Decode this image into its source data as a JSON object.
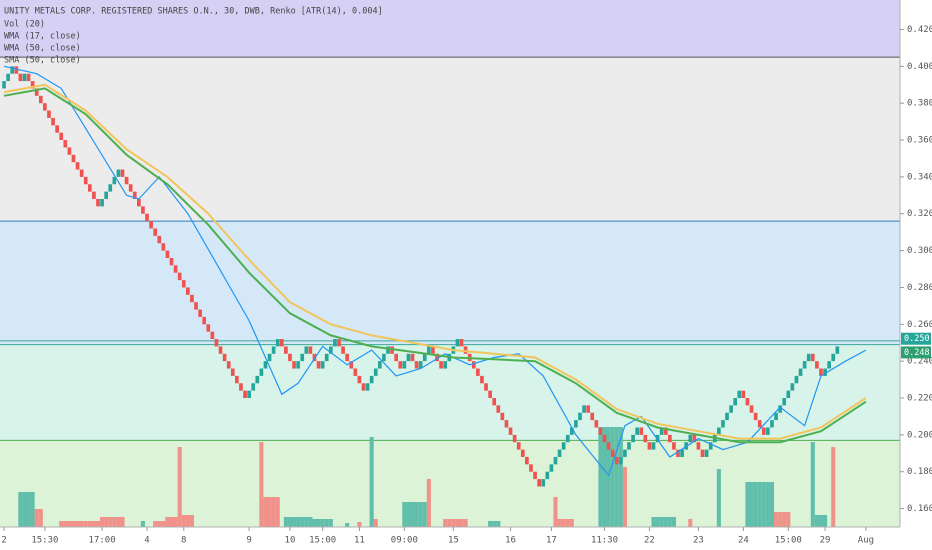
{
  "chart_data": {
    "type": "renko",
    "title": "UNITY METALS CORP. REGISTERED SHARES O.N., 30, DWB, Renko [ATR(14), 0.004]",
    "brick_size": 0.004,
    "up_color": "#26a69a",
    "down_color": "#ef5350",
    "closes": [
      0.392,
      0.396,
      0.4,
      0.396,
      0.392,
      0.396,
      0.392,
      0.388,
      0.384,
      0.38,
      0.376,
      0.372,
      0.368,
      0.364,
      0.36,
      0.356,
      0.352,
      0.348,
      0.344,
      0.34,
      0.336,
      0.332,
      0.328,
      0.324,
      0.328,
      0.332,
      0.336,
      0.34,
      0.344,
      0.34,
      0.336,
      0.332,
      0.328,
      0.324,
      0.32,
      0.316,
      0.312,
      0.308,
      0.304,
      0.3,
      0.296,
      0.292,
      0.288,
      0.284,
      0.28,
      0.276,
      0.272,
      0.268,
      0.264,
      0.26,
      0.256,
      0.252,
      0.248,
      0.244,
      0.24,
      0.236,
      0.232,
      0.228,
      0.224,
      0.22,
      0.224,
      0.228,
      0.232,
      0.236,
      0.24,
      0.244,
      0.248,
      0.252,
      0.248,
      0.244,
      0.24,
      0.236,
      0.24,
      0.244,
      0.248,
      0.244,
      0.24,
      0.236,
      0.24,
      0.244,
      0.248,
      0.252,
      0.248,
      0.244,
      0.24,
      0.236,
      0.232,
      0.228,
      0.224,
      0.228,
      0.232,
      0.236,
      0.24,
      0.244,
      0.248,
      0.244,
      0.24,
      0.236,
      0.24,
      0.244,
      0.24,
      0.236,
      0.24,
      0.244,
      0.248,
      0.244,
      0.24,
      0.236,
      0.24,
      0.244,
      0.248,
      0.252,
      0.248,
      0.244,
      0.24,
      0.236,
      0.232,
      0.228,
      0.224,
      0.22,
      0.216,
      0.212,
      0.208,
      0.204,
      0.2,
      0.196,
      0.192,
      0.188,
      0.184,
      0.18,
      0.176,
      0.172,
      0.176,
      0.18,
      0.184,
      0.188,
      0.192,
      0.196,
      0.2,
      0.204,
      0.208,
      0.212,
      0.216,
      0.212,
      0.208,
      0.204,
      0.2,
      0.196,
      0.192,
      0.188,
      0.184,
      0.188,
      0.192,
      0.196,
      0.2,
      0.204,
      0.2,
      0.196,
      0.192,
      0.196,
      0.2,
      0.204,
      0.2,
      0.196,
      0.192,
      0.188,
      0.192,
      0.196,
      0.2,
      0.196,
      0.192,
      0.188,
      0.192,
      0.196,
      0.2,
      0.204,
      0.208,
      0.212,
      0.216,
      0.22,
      0.224,
      0.22,
      0.216,
      0.212,
      0.208,
      0.204,
      0.2,
      0.204,
      0.208,
      0.212,
      0.216,
      0.22,
      0.224,
      0.228,
      0.232,
      0.236,
      0.24,
      0.244,
      0.24,
      0.236,
      0.232,
      0.236,
      0.24,
      0.244,
      0.248
    ],
    "lines": [
      {
        "name": "WMA (17, close)",
        "color": "#2196f3",
        "x": [
          0,
          8,
          14,
          30,
          33,
          38,
          45,
          60,
          68,
          72,
          78,
          84,
          90,
          96,
          102,
          108,
          114,
          120,
          126,
          132,
          140,
          148,
          152,
          156,
          163,
          170,
          176,
          182,
          190,
          196,
          200,
          206,
          211
        ],
        "values": [
          0.4,
          0.396,
          0.388,
          0.33,
          0.328,
          0.34,
          0.32,
          0.262,
          0.222,
          0.228,
          0.248,
          0.238,
          0.246,
          0.232,
          0.236,
          0.244,
          0.238,
          0.242,
          0.244,
          0.232,
          0.2,
          0.178,
          0.205,
          0.21,
          0.188,
          0.198,
          0.192,
          0.196,
          0.215,
          0.205,
          0.232,
          0.24,
          0.246
        ]
      },
      {
        "name": "SMA (50, close)",
        "color": "#f2c55c",
        "x": [
          0,
          10,
          20,
          30,
          40,
          50,
          60,
          70,
          80,
          90,
          100,
          110,
          120,
          130,
          140,
          150,
          160,
          170,
          180,
          190,
          200,
          211
        ],
        "values": [
          0.386,
          0.39,
          0.376,
          0.355,
          0.34,
          0.32,
          0.295,
          0.272,
          0.26,
          0.254,
          0.25,
          0.246,
          0.244,
          0.242,
          0.23,
          0.214,
          0.206,
          0.202,
          0.198,
          0.198,
          0.204,
          0.22
        ]
      },
      {
        "name": "WMA (50, close)",
        "color": "#4caf50",
        "x": [
          0,
          10,
          20,
          30,
          40,
          50,
          60,
          70,
          80,
          90,
          100,
          110,
          120,
          130,
          140,
          150,
          160,
          170,
          180,
          190,
          200,
          211
        ],
        "values": [
          0.384,
          0.388,
          0.374,
          0.352,
          0.336,
          0.314,
          0.288,
          0.266,
          0.254,
          0.248,
          0.245,
          0.242,
          0.241,
          0.24,
          0.228,
          0.212,
          0.204,
          0.2,
          0.196,
          0.196,
          0.202,
          0.218
        ]
      }
    ],
    "volume_name": "Vol (20)",
    "vlim": [
      0,
      100
    ],
    "volume_up": {
      "color": "#5fbfab",
      "x": [
        4,
        5,
        6,
        7,
        34,
        69,
        70,
        71,
        72,
        73,
        74,
        75,
        76,
        77,
        78,
        79,
        80,
        84,
        90,
        98,
        99,
        100,
        101,
        102,
        103,
        119,
        120,
        121,
        146,
        147,
        148,
        149,
        150,
        151,
        159,
        160,
        161,
        162,
        163,
        164,
        175,
        182,
        183,
        184,
        185,
        186,
        187,
        188,
        198,
        199,
        200,
        201
      ],
      "values": [
        35,
        35,
        35,
        35,
        6,
        10,
        10,
        10,
        10,
        10,
        10,
        10,
        8,
        8,
        8,
        8,
        8,
        4,
        90,
        25,
        25,
        25,
        25,
        25,
        25,
        6,
        6,
        6,
        100,
        100,
        100,
        100,
        100,
        100,
        10,
        10,
        10,
        10,
        10,
        10,
        58,
        45,
        45,
        45,
        45,
        45,
        45,
        45,
        85,
        12,
        12,
        12
      ]
    },
    "volume_down": {
      "color": "#f0928a",
      "x": [
        8,
        9,
        14,
        15,
        16,
        17,
        18,
        19,
        20,
        21,
        22,
        23,
        24,
        25,
        26,
        27,
        28,
        29,
        37,
        38,
        39,
        40,
        41,
        42,
        43,
        44,
        45,
        46,
        63,
        64,
        65,
        66,
        67,
        87,
        91,
        104,
        108,
        109,
        110,
        111,
        112,
        113,
        135,
        136,
        137,
        138,
        139,
        152,
        168,
        189,
        190,
        191,
        192,
        203
      ],
      "values": [
        18,
        18,
        6,
        6,
        6,
        6,
        6,
        6,
        6,
        6,
        6,
        6,
        10,
        10,
        10,
        10,
        10,
        10,
        6,
        6,
        6,
        10,
        10,
        10,
        80,
        12,
        12,
        12,
        85,
        30,
        30,
        30,
        30,
        5,
        8,
        48,
        8,
        8,
        8,
        8,
        8,
        8,
        30,
        8,
        8,
        8,
        8,
        60,
        8,
        15,
        15,
        15,
        15,
        80
      ]
    },
    "bands": [
      {
        "from": 0.405,
        "to": 0.436,
        "color": "#d6d0f5"
      },
      {
        "from": 0.316,
        "to": 0.405,
        "color": "#ececec"
      },
      {
        "from": 0.249,
        "to": 0.316,
        "color": "#d4e8f7"
      },
      {
        "from": 0.197,
        "to": 0.249,
        "color": "#d7f3ea"
      },
      {
        "from": 0.15,
        "to": 0.197,
        "color": "#dcf3d8"
      }
    ],
    "levels": [
      {
        "value": 0.405,
        "color": "#555555"
      },
      {
        "value": 0.316,
        "color": "#2f7fc1"
      },
      {
        "value": 0.251,
        "color": "#3aa99a"
      },
      {
        "value": 0.249,
        "color": "#3aa99a"
      },
      {
        "value": 0.197,
        "color": "#4caf50"
      }
    ],
    "price_tags": [
      {
        "value": 0.25,
        "label": "0.250",
        "color": "#26a69a"
      },
      {
        "value": 0.248,
        "label": "0.248",
        "color": "#2e9f6e"
      }
    ],
    "ylim": [
      0.15,
      0.436
    ],
    "yticks": [
      {
        "value": 0.42,
        "label": "0.420"
      },
      {
        "value": 0.4,
        "label": "0.400"
      },
      {
        "value": 0.38,
        "label": "0.380"
      },
      {
        "value": 0.36,
        "label": "0.360"
      },
      {
        "value": 0.34,
        "label": "0.340"
      },
      {
        "value": 0.32,
        "label": "0.320"
      },
      {
        "value": 0.3,
        "label": "0.300"
      },
      {
        "value": 0.28,
        "label": "0.280"
      },
      {
        "value": 0.26,
        "label": "0.260"
      },
      {
        "value": 0.24,
        "label": "0.240"
      },
      {
        "value": 0.22,
        "label": "0.220"
      },
      {
        "value": 0.2,
        "label": "0.200"
      },
      {
        "value": 0.18,
        "label": "0.180"
      },
      {
        "value": 0.16,
        "label": "0.160"
      }
    ],
    "xlim": [
      -0.5,
      212
    ],
    "xticks": [
      {
        "value": 0,
        "label": "2"
      },
      {
        "value": 10,
        "label": "15:30"
      },
      {
        "value": 24,
        "label": "17:00"
      },
      {
        "value": 35,
        "label": "4"
      },
      {
        "value": 44,
        "label": "8"
      },
      {
        "value": 60,
        "label": "9"
      },
      {
        "value": 70,
        "label": "10"
      },
      {
        "value": 78,
        "label": "15:00"
      },
      {
        "value": 87,
        "label": "11"
      },
      {
        "value": 98,
        "label": "09:00"
      },
      {
        "value": 110,
        "label": "15"
      },
      {
        "value": 124,
        "label": "16"
      },
      {
        "value": 134,
        "label": "17"
      },
      {
        "value": 147,
        "label": "11:30"
      },
      {
        "value": 158,
        "label": "22"
      },
      {
        "value": 170,
        "label": "23"
      },
      {
        "value": 181,
        "label": "24"
      },
      {
        "value": 192,
        "label": "15:00"
      },
      {
        "value": 201,
        "label": "29"
      },
      {
        "value": 211,
        "label": "Aug"
      }
    ]
  }
}
